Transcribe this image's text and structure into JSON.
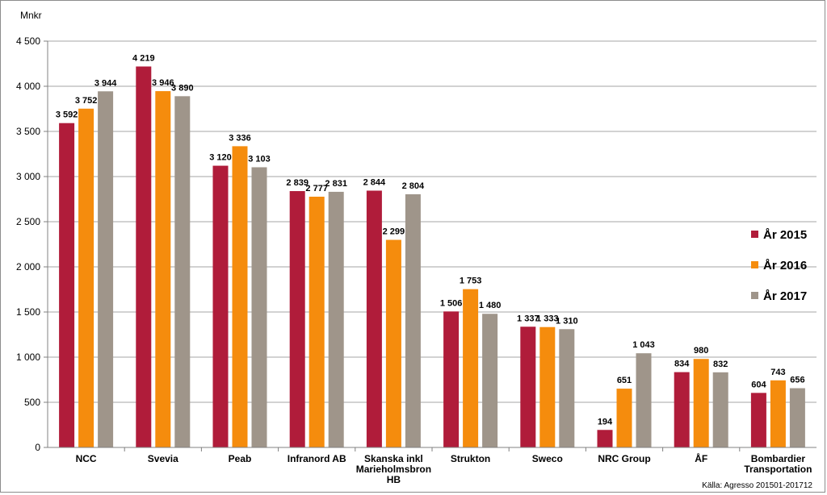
{
  "chart_data": {
    "type": "bar",
    "unit_label": "Mnkr",
    "categories": [
      [
        "NCC"
      ],
      [
        "Svevia"
      ],
      [
        "Peab"
      ],
      [
        "Infranord AB"
      ],
      [
        "Skanska inkl",
        "Marieholmsbron",
        "HB"
      ],
      [
        "Strukton"
      ],
      [
        "Sweco"
      ],
      [
        "NRC Group"
      ],
      [
        "ÅF"
      ],
      [
        "Bombardier",
        "Transportation"
      ]
    ],
    "series": [
      {
        "name": "År 2015",
        "color": "#b01c3a",
        "values": [
          3592,
          4219,
          3120,
          2839,
          2844,
          1506,
          1337,
          194,
          834,
          604
        ],
        "labels": [
          "3 592",
          "4 219",
          "3 120",
          "2 839",
          "2 844",
          "1 506",
          "1 337",
          "194",
          "834",
          "604"
        ]
      },
      {
        "name": "År 2016",
        "color": "#f58c0d",
        "values": [
          3752,
          3946,
          3336,
          2777,
          2299,
          1753,
          1333,
          651,
          980,
          743
        ],
        "labels": [
          "3 752",
          "3 946",
          "3 336",
          "2 777",
          "2 299",
          "1 753",
          "1 333",
          "651",
          "980",
          "743"
        ]
      },
      {
        "name": "År 2017",
        "color": "#9f958a",
        "values": [
          3944,
          3890,
          3103,
          2831,
          2804,
          1480,
          1310,
          1043,
          832,
          656
        ],
        "labels": [
          "3 944",
          "3 890",
          "3 103",
          "2 831",
          "2 804",
          "1 480",
          "1 310",
          "1 043",
          "832",
          "656"
        ]
      }
    ],
    "ylim": [
      0,
      4500
    ],
    "yticks": [
      0,
      500,
      1000,
      1500,
      2000,
      2500,
      3000,
      3500,
      4000,
      4500
    ],
    "ytick_labels": [
      "0",
      "500",
      "1 000",
      "1 500",
      "2 000",
      "2 500",
      "3 000",
      "3 500",
      "4 000",
      "4 500"
    ],
    "grid": true,
    "legend_position": "right",
    "source_note": "Källa: Agresso  201501-201712"
  }
}
